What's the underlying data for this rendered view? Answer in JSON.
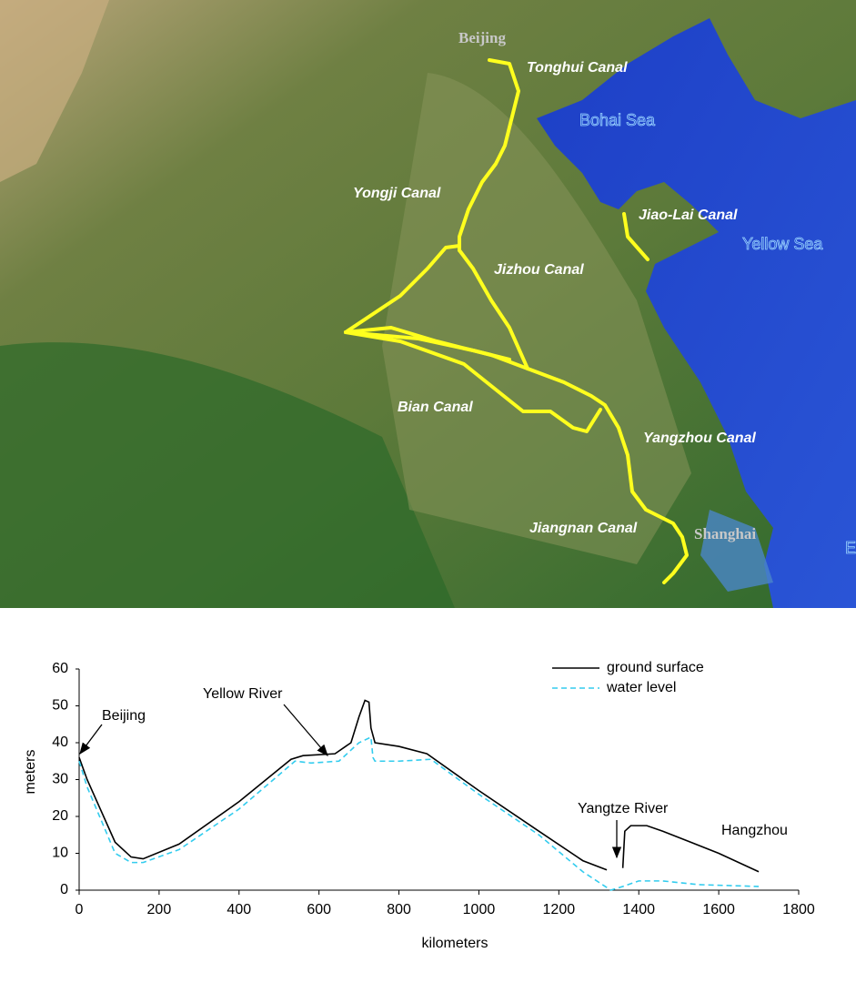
{
  "map": {
    "cities": [
      "Beijing",
      "Shanghai"
    ],
    "canals": [
      "Tonghui Canal",
      "Yongji Canal",
      "Jiao-Lai Canal",
      "Jizhou Canal",
      "Bian Canal",
      "Yangzhou Canal",
      "Jiangnan Canal"
    ],
    "seas": [
      "Bohai Sea",
      "Yellow Sea",
      "E"
    ]
  },
  "chart_data": {
    "type": "line",
    "xlabel": "kilometers",
    "ylabel": "meters",
    "xlim": [
      0,
      1800
    ],
    "ylim": [
      0,
      60
    ],
    "xticks": [
      0,
      200,
      400,
      600,
      800,
      1000,
      1200,
      1400,
      1600,
      1800
    ],
    "yticks": [
      0,
      10,
      20,
      30,
      40,
      50,
      60
    ],
    "legend": "upper right",
    "annotations": [
      "Beijing",
      "Yellow River",
      "Yangtze River",
      "Hangzhou"
    ],
    "series": [
      {
        "name": "ground surface",
        "color": "#000000",
        "dashed": false,
        "x": [
          0,
          20,
          90,
          130,
          160,
          250,
          400,
          530,
          560,
          640,
          680,
          700,
          715,
          725,
          730,
          740,
          800,
          870,
          1000,
          1150,
          1260,
          1320,
          1340,
          1360,
          1365,
          1380,
          1420,
          1460,
          1600,
          1700
        ],
        "values": [
          36,
          30,
          13,
          9,
          8.5,
          12.5,
          24,
          35.5,
          36.5,
          37,
          40,
          47,
          51.5,
          51,
          44,
          40,
          39,
          37,
          27,
          16,
          8,
          5.5,
          null,
          6,
          16,
          17.5,
          17.5,
          16,
          10,
          5
        ]
      },
      {
        "name": "water level",
        "color": "#33ccee",
        "dashed": true,
        "x": [
          0,
          20,
          90,
          130,
          160,
          250,
          400,
          540,
          580,
          650,
          700,
          730,
          735,
          740,
          800,
          880,
          1000,
          1150,
          1260,
          1330,
          1360,
          1400,
          1460,
          1550,
          1700
        ],
        "values": [
          35,
          28,
          10,
          7.5,
          7.5,
          11,
          22,
          35,
          34.5,
          35,
          40,
          41.5,
          36,
          35,
          35,
          35.5,
          26,
          15,
          5,
          0,
          1,
          2.5,
          2.5,
          1.5,
          1
        ]
      }
    ]
  }
}
